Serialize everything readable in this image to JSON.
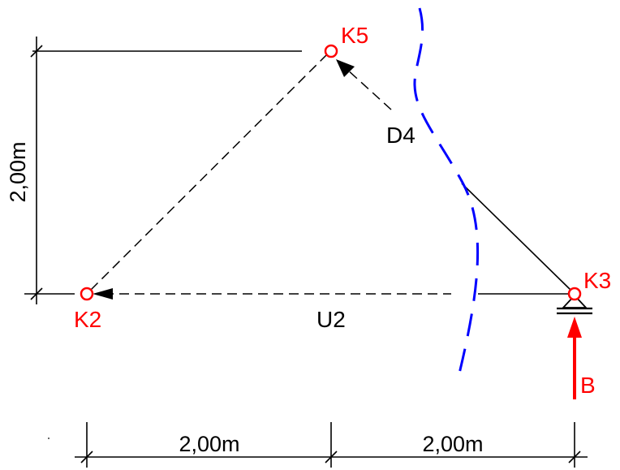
{
  "nodes": {
    "k2": "K2",
    "k3": "K3",
    "k5": "K5"
  },
  "members": {
    "u2": "U2",
    "d4": "D4"
  },
  "dimensions": {
    "vertical": "2,00m",
    "horizontal_left": "2,00m",
    "horizontal_right": "2,00m"
  },
  "forces": {
    "support_reaction": "B"
  },
  "colors": {
    "node": "#ff0000",
    "node_label": "#ff0000",
    "cut_line": "#0000ff",
    "reaction": "#ff0000",
    "line": "#000000"
  }
}
